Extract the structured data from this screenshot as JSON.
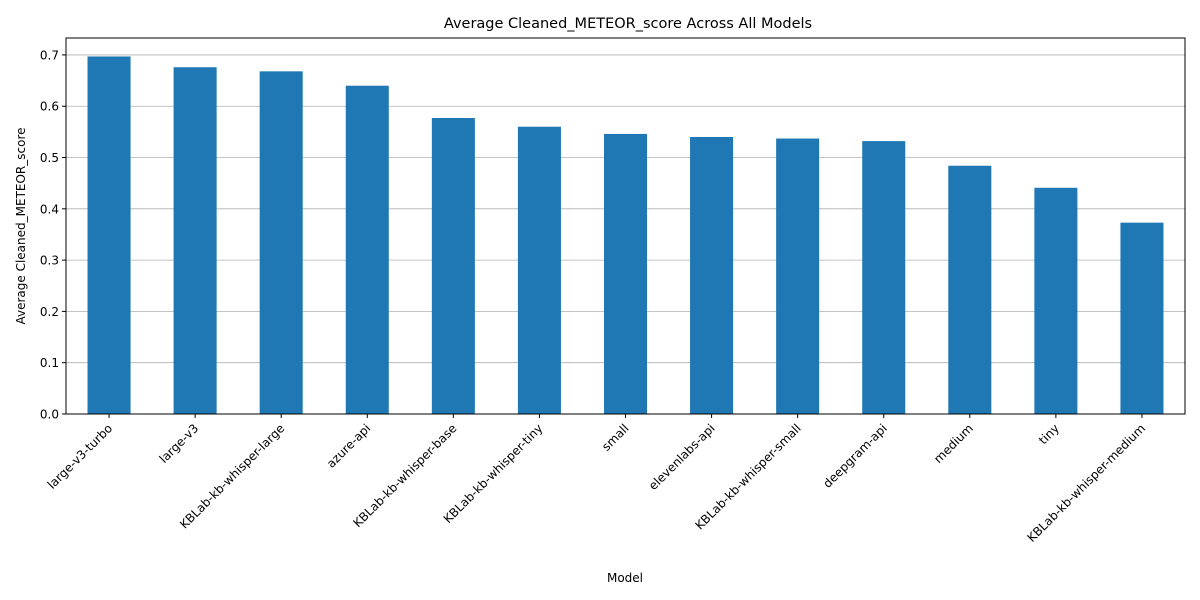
{
  "chart_data": {
    "type": "bar",
    "title": "Average Cleaned_METEOR_score Across All Models",
    "xlabel": "Model",
    "ylabel": "Average Cleaned_METEOR_score",
    "categories": [
      "large-v3-turbo",
      "large-v3",
      "KBLab-kb-whisper-large",
      "azure-api",
      "KBLab-kb-whisper-base",
      "KBLab-kb-whisper-tiny",
      "small",
      "elevenlabs-api",
      "KBLab-kb-whisper-small",
      "deepgram-api",
      "medium",
      "tiny",
      "KBLab-kb-whisper-medium"
    ],
    "values": [
      0.697,
      0.676,
      0.668,
      0.64,
      0.577,
      0.56,
      0.546,
      0.54,
      0.537,
      0.532,
      0.484,
      0.441,
      0.373
    ],
    "ylim": [
      0,
      0.733
    ],
    "yticks": [
      "0.0",
      "0.1",
      "0.2",
      "0.3",
      "0.4",
      "0.5",
      "0.6",
      "0.7"
    ],
    "grid": "y",
    "bar_color": "#1f77b4",
    "grid_color": "#b0b0b0"
  }
}
